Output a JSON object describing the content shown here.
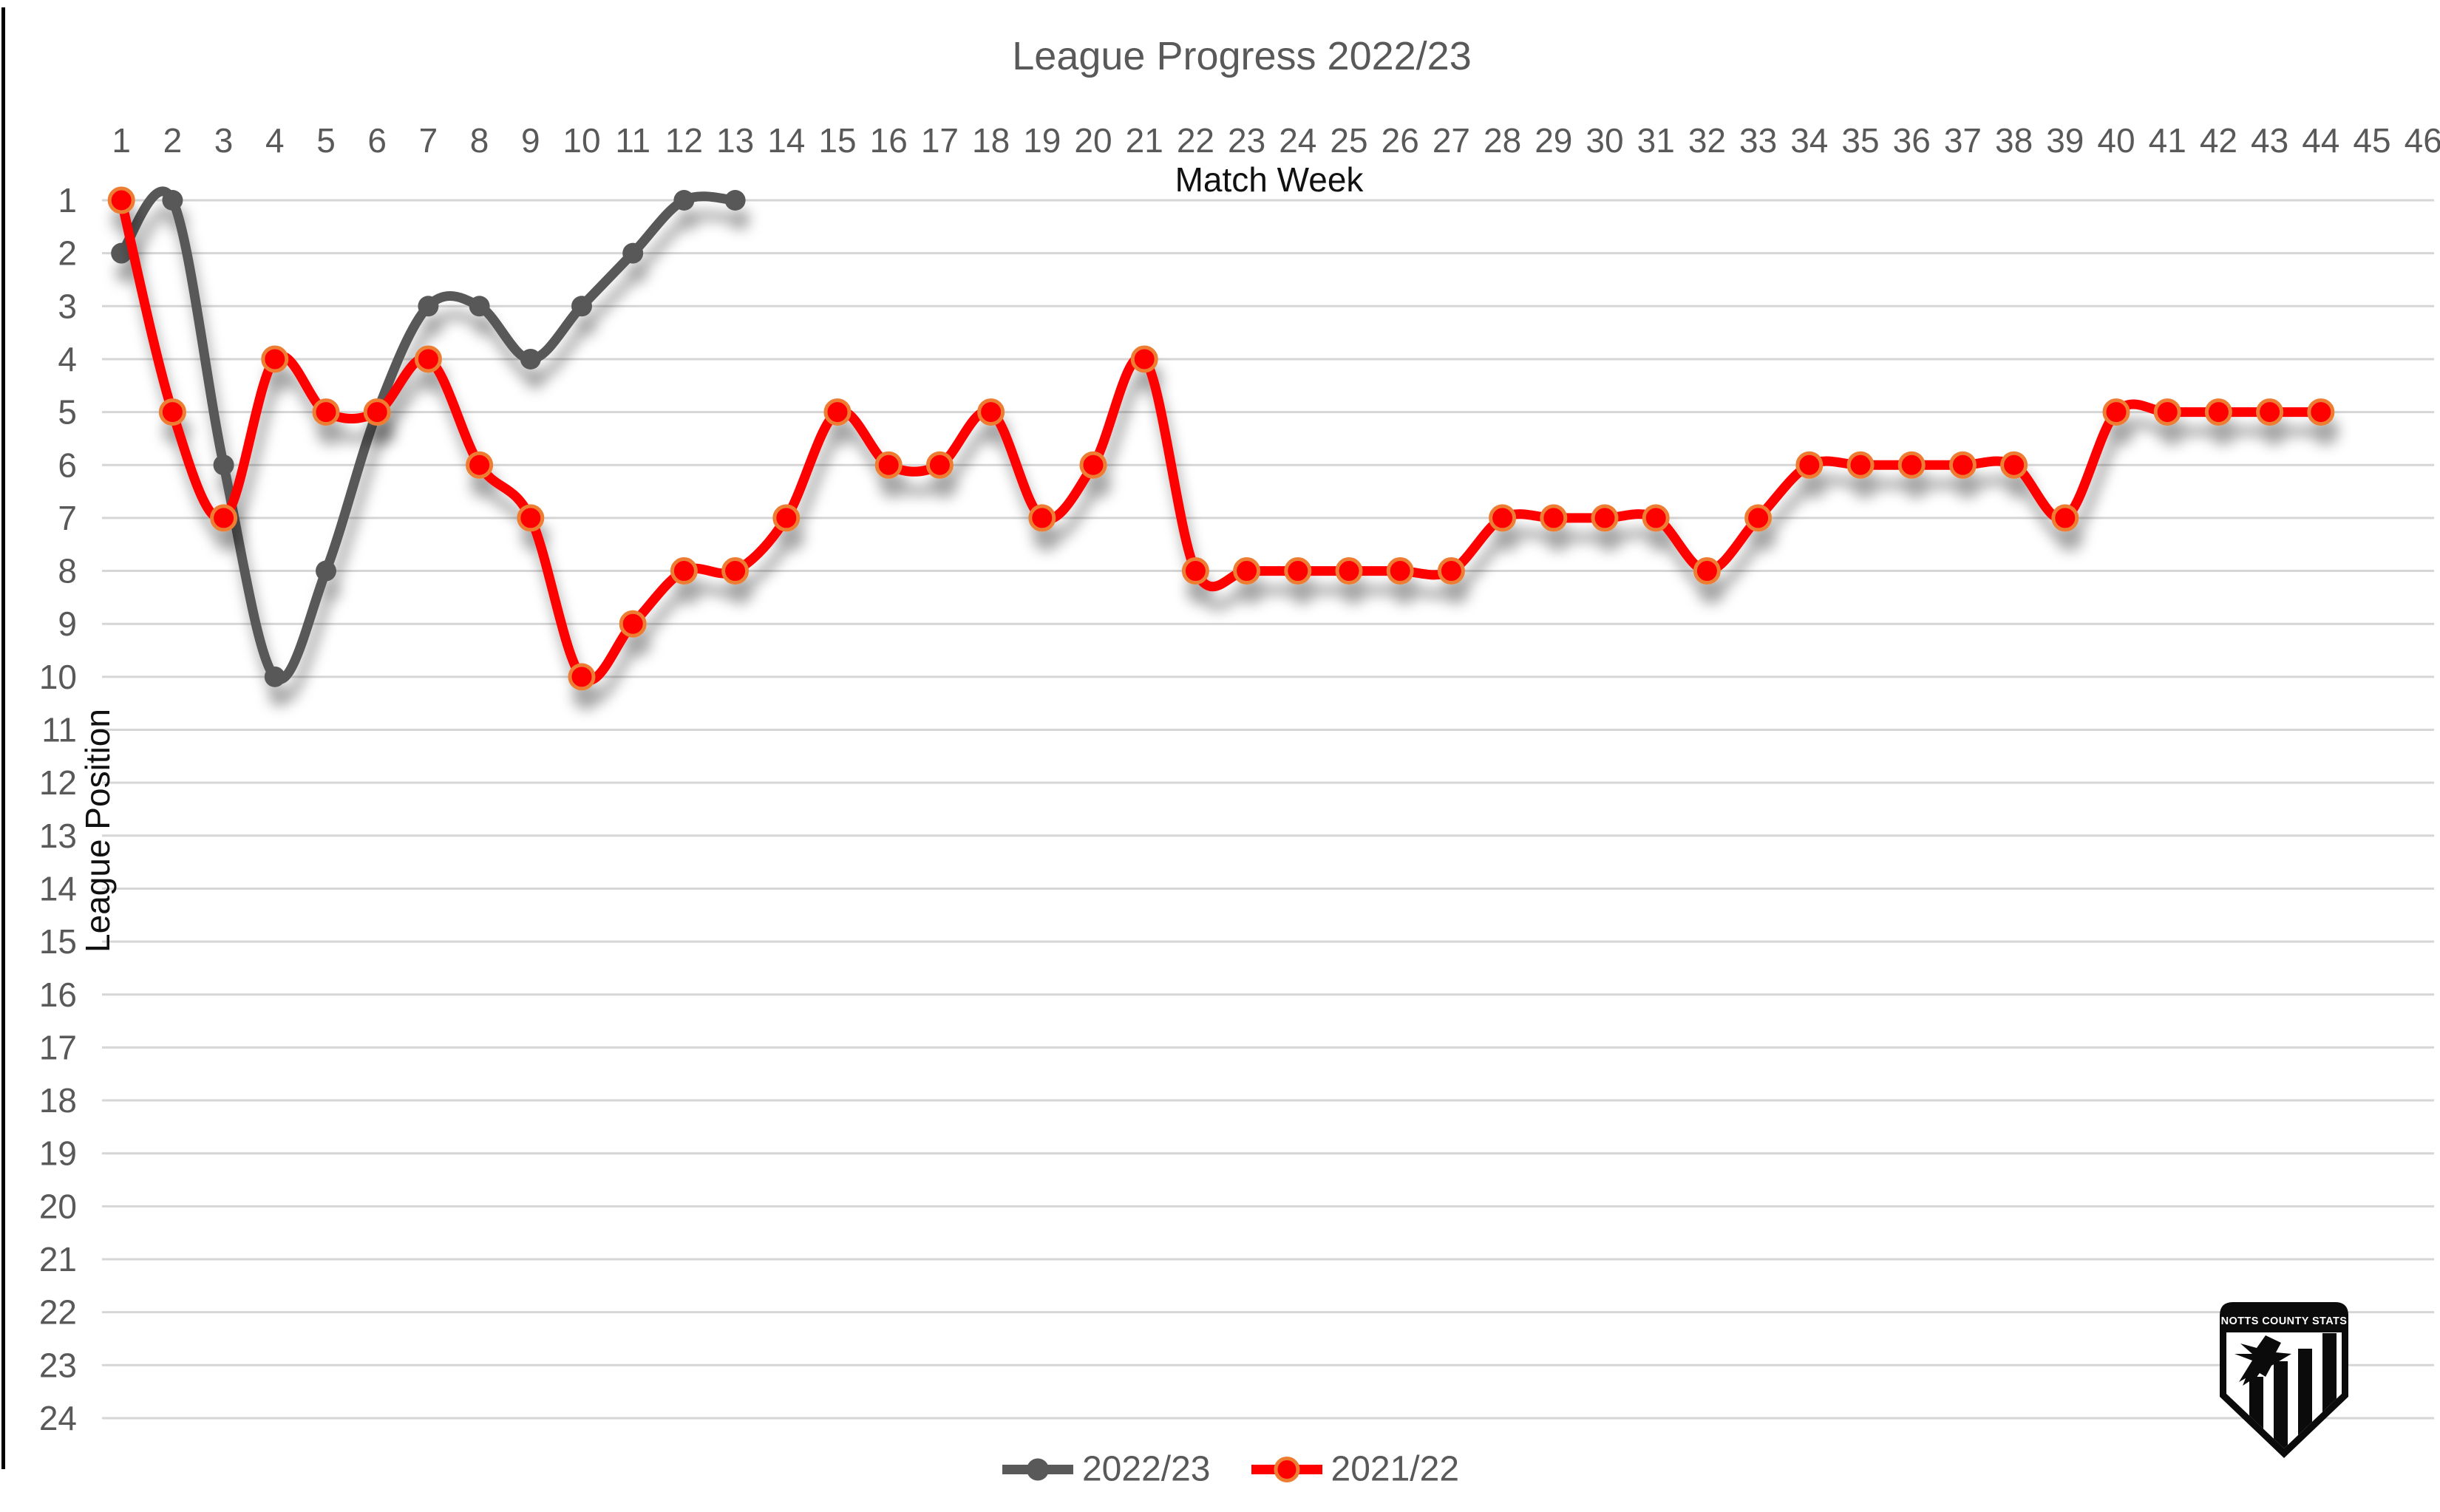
{
  "title": "League Progress 2022/23",
  "x_axis": {
    "title": "Match Week",
    "ticks": [
      "1",
      "2",
      "3",
      "4",
      "5",
      "6",
      "7",
      "8",
      "9",
      "10",
      "11",
      "12",
      "13",
      "14",
      "15",
      "16",
      "17",
      "18",
      "19",
      "20",
      "21",
      "22",
      "23",
      "24",
      "25",
      "26",
      "27",
      "28",
      "29",
      "30",
      "31",
      "32",
      "33",
      "34",
      "35",
      "36",
      "37",
      "38",
      "39",
      "40",
      "41",
      "42",
      "43",
      "44",
      "45",
      "46"
    ]
  },
  "y_axis": {
    "title": "League Position",
    "ticks": [
      "1",
      "2",
      "3",
      "4",
      "5",
      "6",
      "7",
      "8",
      "9",
      "10",
      "11",
      "12",
      "13",
      "14",
      "15",
      "16",
      "17",
      "18",
      "19",
      "20",
      "21",
      "22",
      "23",
      "24"
    ]
  },
  "legend": {
    "items": [
      {
        "label": "2022/23"
      },
      {
        "label": "2021/22"
      }
    ]
  },
  "logo": {
    "text": "NOTTS COUNTY STATS"
  },
  "colors": {
    "series_2022_23": "#595959",
    "series_2021_22": "#ff0000",
    "marker_border_2021_22": "#ED7D31",
    "gridline": "#d6d6d6",
    "tick_text": "#595959",
    "title_text": "#595959",
    "axis_title_text": "#111111",
    "left_border": "#000000",
    "background": "#ffffff"
  },
  "chart_data": {
    "type": "line",
    "title": "League Progress 2022/23",
    "xlabel": "Match Week",
    "ylabel": "League Position",
    "x_range": [
      1,
      46
    ],
    "y_range": [
      1,
      24
    ],
    "y_inverted": true,
    "grid": true,
    "smoothed_lines": true,
    "legend_position": "bottom-center",
    "series": [
      {
        "name": "2022/23",
        "color": "#595959",
        "marker_fill": "#595959",
        "marker_border": "#595959",
        "x": [
          1,
          2,
          3,
          4,
          5,
          6,
          7,
          8,
          9,
          10,
          11,
          12,
          13
        ],
        "values": [
          2,
          1,
          6,
          10,
          8,
          5,
          3,
          3,
          4,
          3,
          2,
          1,
          1
        ]
      },
      {
        "name": "2021/22",
        "color": "#ff0000",
        "marker_fill": "#ff0000",
        "marker_border": "#ED7D31",
        "x": [
          1,
          2,
          3,
          4,
          5,
          6,
          7,
          8,
          9,
          10,
          11,
          12,
          13,
          14,
          15,
          16,
          17,
          18,
          19,
          20,
          21,
          22,
          23,
          24,
          25,
          26,
          27,
          28,
          29,
          30,
          31,
          32,
          33,
          34,
          35,
          36,
          37,
          38,
          39,
          40,
          41,
          42,
          43,
          44
        ],
        "values": [
          1,
          5,
          7,
          4,
          5,
          5,
          4,
          6,
          7,
          10,
          9,
          8,
          8,
          7,
          5,
          6,
          6,
          5,
          7,
          6,
          4,
          8,
          8,
          8,
          8,
          8,
          8,
          7,
          7,
          7,
          7,
          8,
          7,
          6,
          6,
          6,
          6,
          6,
          7,
          5,
          5,
          5,
          5,
          5
        ]
      }
    ]
  }
}
